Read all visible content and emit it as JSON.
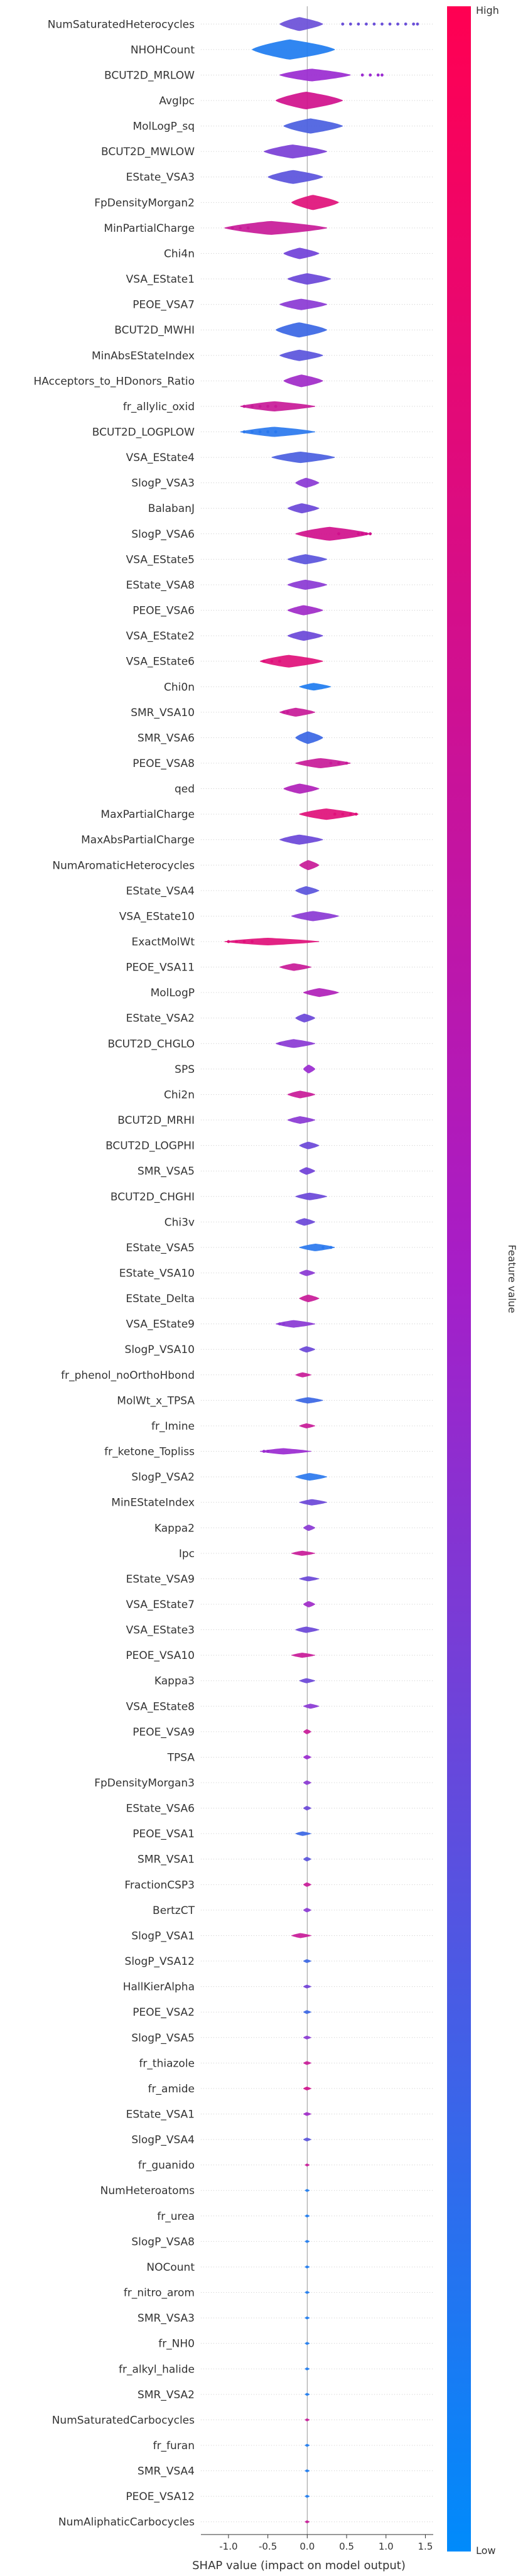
{
  "chart_data": {
    "type": "violin",
    "title": "",
    "xlabel": "SHAP value (impact on model output)",
    "ylabel": "",
    "xlim": [
      -1.35,
      1.6
    ],
    "xticks": [
      "-1.0",
      "-0.5",
      "0.0",
      "0.5",
      "1.0",
      "1.5"
    ],
    "xtick_values": [
      -1.0,
      -0.5,
      0.0,
      0.5,
      1.0,
      1.5
    ],
    "colorbar": {
      "label": "Feature value",
      "high": "High",
      "low": "Low",
      "high_color": "#ff0052",
      "low_color": "#008bfb"
    },
    "features": [
      {
        "name": "NumSaturatedHeterocycles",
        "lo": -0.35,
        "hi": 0.2,
        "w": 0.55,
        "color": "#6a4fd8",
        "outliers": [
          0.45,
          0.55,
          0.65,
          0.75,
          0.85,
          0.95,
          1.05,
          1.15,
          1.25,
          1.35,
          1.4
        ]
      },
      {
        "name": "NHOHCount",
        "lo": -0.7,
        "hi": 0.35,
        "w": 0.8,
        "color": "#1e7cf0",
        "outliers": []
      },
      {
        "name": "BCUT2D_MRLOW",
        "lo": -0.35,
        "hi": 0.55,
        "w": 0.5,
        "color": "#9a2ad0",
        "outliers": [
          0.7,
          0.8,
          0.9,
          0.95
        ]
      },
      {
        "name": "AvgIpc",
        "lo": -0.4,
        "hi": 0.45,
        "w": 0.7,
        "color": "#d0108c",
        "outliers": []
      },
      {
        "name": "MolLogP_sq",
        "lo": -0.3,
        "hi": 0.45,
        "w": 0.6,
        "color": "#4a5ee0",
        "outliers": []
      },
      {
        "name": "BCUT2D_MWLOW",
        "lo": -0.55,
        "hi": 0.25,
        "w": 0.55,
        "color": "#7a3ed6",
        "outliers": []
      },
      {
        "name": "EState_VSA3",
        "lo": -0.5,
        "hi": 0.2,
        "w": 0.55,
        "color": "#5a52dc",
        "outliers": []
      },
      {
        "name": "FpDensityMorgan2",
        "lo": -0.2,
        "hi": 0.4,
        "w": 0.6,
        "color": "#e0107a",
        "outliers": []
      },
      {
        "name": "MinPartialCharge",
        "lo": -1.05,
        "hi": 0.25,
        "w": 0.55,
        "color": "#c81a98",
        "outliers": [
          -0.95,
          -0.85,
          -0.75
        ]
      },
      {
        "name": "Chi4n",
        "lo": -0.3,
        "hi": 0.15,
        "w": 0.45,
        "color": "#7040d8",
        "outliers": []
      },
      {
        "name": "VSA_EState1",
        "lo": -0.25,
        "hi": 0.3,
        "w": 0.45,
        "color": "#6a46d8",
        "outliers": []
      },
      {
        "name": "PEOE_VSA7",
        "lo": -0.35,
        "hi": 0.25,
        "w": 0.45,
        "color": "#8a38d4",
        "outliers": []
      },
      {
        "name": "BCUT2D_MWHI",
        "lo": -0.4,
        "hi": 0.25,
        "w": 0.6,
        "color": "#3a66e4",
        "outliers": []
      },
      {
        "name": "MinAbsEStateIndex",
        "lo": -0.35,
        "hi": 0.2,
        "w": 0.45,
        "color": "#5a54dc",
        "outliers": []
      },
      {
        "name": "HAcceptors_to_HDonors_Ratio",
        "lo": -0.3,
        "hi": 0.2,
        "w": 0.5,
        "color": "#a02ac8",
        "outliers": []
      },
      {
        "name": "fr_allylic_oxid",
        "lo": -0.85,
        "hi": 0.1,
        "w": 0.4,
        "color": "#c81a98",
        "outliers": [
          -0.8,
          -0.7,
          -0.6,
          -0.5,
          -0.4
        ]
      },
      {
        "name": "BCUT2D_LOGPLOW",
        "lo": -0.85,
        "hi": 0.1,
        "w": 0.4,
        "color": "#2a78ee",
        "outliers": [
          -0.8,
          -0.7,
          -0.6,
          -0.5,
          -0.4
        ]
      },
      {
        "name": "VSA_EState4",
        "lo": -0.45,
        "hi": 0.35,
        "w": 0.45,
        "color": "#4a5ee0",
        "outliers": []
      },
      {
        "name": "SlogP_VSA3",
        "lo": -0.15,
        "hi": 0.15,
        "w": 0.4,
        "color": "#8a38d4",
        "outliers": []
      },
      {
        "name": "BalabanJ",
        "lo": -0.25,
        "hi": 0.15,
        "w": 0.4,
        "color": "#6a46d8",
        "outliers": []
      },
      {
        "name": "SlogP_VSA6",
        "lo": -0.15,
        "hi": 0.8,
        "w": 0.55,
        "color": "#d0108c",
        "outliers": [
          0.4,
          0.65,
          0.7,
          0.75,
          0.8
        ]
      },
      {
        "name": "VSA_EState5",
        "lo": -0.25,
        "hi": 0.25,
        "w": 0.4,
        "color": "#5a54dc",
        "outliers": []
      },
      {
        "name": "EState_VSA8",
        "lo": -0.25,
        "hi": 0.25,
        "w": 0.4,
        "color": "#8a38d4",
        "outliers": []
      },
      {
        "name": "PEOE_VSA6",
        "lo": -0.25,
        "hi": 0.2,
        "w": 0.4,
        "color": "#a02ac8",
        "outliers": []
      },
      {
        "name": "VSA_EState2",
        "lo": -0.25,
        "hi": 0.2,
        "w": 0.4,
        "color": "#6a46d8",
        "outliers": []
      },
      {
        "name": "VSA_EState6",
        "lo": -0.6,
        "hi": 0.2,
        "w": 0.5,
        "color": "#e0107a",
        "outliers": [
          -0.55,
          -0.45,
          -0.35
        ]
      },
      {
        "name": "Chi0n",
        "lo": -0.1,
        "hi": 0.3,
        "w": 0.3,
        "color": "#1e7cf0",
        "outliers": []
      },
      {
        "name": "SMR_VSA10",
        "lo": -0.35,
        "hi": 0.1,
        "w": 0.35,
        "color": "#c81a98",
        "outliers": [
          -0.3,
          -0.25
        ]
      },
      {
        "name": "SMR_VSA6",
        "lo": -0.15,
        "hi": 0.2,
        "w": 0.5,
        "color": "#3a66e4",
        "outliers": []
      },
      {
        "name": "PEOE_VSA8",
        "lo": -0.15,
        "hi": 0.55,
        "w": 0.4,
        "color": "#c81a98",
        "outliers": [
          0.3,
          0.4,
          0.5
        ]
      },
      {
        "name": "qed",
        "lo": -0.3,
        "hi": 0.15,
        "w": 0.4,
        "color": "#b020b8",
        "outliers": []
      },
      {
        "name": "MaxPartialCharge",
        "lo": -0.1,
        "hi": 0.65,
        "w": 0.45,
        "color": "#e0107a",
        "outliers": [
          0.35,
          0.45,
          0.55,
          0.62
        ]
      },
      {
        "name": "MaxAbsPartialCharge",
        "lo": -0.35,
        "hi": 0.2,
        "w": 0.4,
        "color": "#6a46d8",
        "outliers": []
      },
      {
        "name": "NumAromaticHeterocycles",
        "lo": -0.1,
        "hi": 0.15,
        "w": 0.4,
        "color": "#c81a98",
        "outliers": []
      },
      {
        "name": "EState_VSA4",
        "lo": -0.15,
        "hi": 0.15,
        "w": 0.35,
        "color": "#5a54dc",
        "outliers": []
      },
      {
        "name": "VSA_EState10",
        "lo": -0.2,
        "hi": 0.4,
        "w": 0.4,
        "color": "#8a38d4",
        "outliers": []
      },
      {
        "name": "ExactMolWt",
        "lo": -1.05,
        "hi": 0.15,
        "w": 0.3,
        "color": "#e0107a",
        "outliers": [
          -1.0,
          -0.9,
          -0.8,
          -0.7
        ]
      },
      {
        "name": "PEOE_VSA11",
        "lo": -0.35,
        "hi": 0.05,
        "w": 0.3,
        "color": "#c81a98",
        "outliers": []
      },
      {
        "name": "MolLogP",
        "lo": -0.05,
        "hi": 0.4,
        "w": 0.35,
        "color": "#b020b8",
        "outliers": []
      },
      {
        "name": "EState_VSA2",
        "lo": -0.15,
        "hi": 0.1,
        "w": 0.35,
        "color": "#6a46d8",
        "outliers": []
      },
      {
        "name": "BCUT2D_CHGLO",
        "lo": -0.4,
        "hi": 0.1,
        "w": 0.35,
        "color": "#8a38d4",
        "outliers": [
          -0.35
        ]
      },
      {
        "name": "SPS",
        "lo": -0.05,
        "hi": 0.1,
        "w": 0.35,
        "color": "#9a2ad0",
        "outliers": []
      },
      {
        "name": "Chi2n",
        "lo": -0.25,
        "hi": 0.1,
        "w": 0.3,
        "color": "#c81a98",
        "outliers": []
      },
      {
        "name": "BCUT2D_MRHI",
        "lo": -0.25,
        "hi": 0.1,
        "w": 0.3,
        "color": "#8a38d4",
        "outliers": []
      },
      {
        "name": "BCUT2D_LOGPHI",
        "lo": -0.1,
        "hi": 0.15,
        "w": 0.3,
        "color": "#6a46d8",
        "outliers": []
      },
      {
        "name": "SMR_VSA5",
        "lo": -0.1,
        "hi": 0.1,
        "w": 0.3,
        "color": "#7040d8",
        "outliers": []
      },
      {
        "name": "BCUT2D_CHGHI",
        "lo": -0.15,
        "hi": 0.25,
        "w": 0.3,
        "color": "#6a46d8",
        "outliers": []
      },
      {
        "name": "Chi3v",
        "lo": -0.15,
        "hi": 0.1,
        "w": 0.3,
        "color": "#6a46d8",
        "outliers": []
      },
      {
        "name": "EState_VSA5",
        "lo": -0.1,
        "hi": 0.35,
        "w": 0.3,
        "color": "#2a78ee",
        "outliers": [
          0.2,
          0.3
        ]
      },
      {
        "name": "EState_VSA10",
        "lo": -0.1,
        "hi": 0.1,
        "w": 0.25,
        "color": "#8a38d4",
        "outliers": []
      },
      {
        "name": "EState_Delta",
        "lo": -0.1,
        "hi": 0.15,
        "w": 0.3,
        "color": "#c81a98",
        "outliers": []
      },
      {
        "name": "VSA_EState9",
        "lo": -0.4,
        "hi": 0.1,
        "w": 0.3,
        "color": "#8a38d4",
        "outliers": [
          -0.35,
          -0.3
        ]
      },
      {
        "name": "SlogP_VSA10",
        "lo": -0.1,
        "hi": 0.1,
        "w": 0.25,
        "color": "#6a46d8",
        "outliers": []
      },
      {
        "name": "fr_phenol_noOrthoHbond",
        "lo": -0.15,
        "hi": 0.05,
        "w": 0.2,
        "color": "#c81a98",
        "outliers": []
      },
      {
        "name": "MolWt_x_TPSA",
        "lo": -0.15,
        "hi": 0.2,
        "w": 0.25,
        "color": "#3a66e4",
        "outliers": []
      },
      {
        "name": "fr_Imine",
        "lo": -0.1,
        "hi": 0.1,
        "w": 0.2,
        "color": "#c81a98",
        "outliers": []
      },
      {
        "name": "fr_ketone_Topliss",
        "lo": -0.6,
        "hi": 0.05,
        "w": 0.25,
        "color": "#9a2ad0",
        "outliers": [
          -0.55,
          -0.5
        ]
      },
      {
        "name": "SlogP_VSA2",
        "lo": -0.15,
        "hi": 0.25,
        "w": 0.3,
        "color": "#2a78ee",
        "outliers": []
      },
      {
        "name": "MinEStateIndex",
        "lo": -0.1,
        "hi": 0.25,
        "w": 0.25,
        "color": "#6a46d8",
        "outliers": []
      },
      {
        "name": "Kappa2",
        "lo": -0.05,
        "hi": 0.1,
        "w": 0.25,
        "color": "#8a38d4",
        "outliers": []
      },
      {
        "name": "Ipc",
        "lo": -0.2,
        "hi": 0.1,
        "w": 0.2,
        "color": "#c81a98",
        "outliers": []
      },
      {
        "name": "EState_VSA9",
        "lo": -0.1,
        "hi": 0.15,
        "w": 0.2,
        "color": "#6a46d8",
        "outliers": []
      },
      {
        "name": "VSA_EState7",
        "lo": -0.05,
        "hi": 0.1,
        "w": 0.25,
        "color": "#a02ac8",
        "outliers": []
      },
      {
        "name": "VSA_EState3",
        "lo": -0.15,
        "hi": 0.15,
        "w": 0.25,
        "color": "#6a46d8",
        "outliers": []
      },
      {
        "name": "PEOE_VSA10",
        "lo": -0.2,
        "hi": 0.1,
        "w": 0.2,
        "color": "#c81a98",
        "outliers": []
      },
      {
        "name": "Kappa3",
        "lo": -0.1,
        "hi": 0.1,
        "w": 0.2,
        "color": "#6a46d8",
        "outliers": []
      },
      {
        "name": "VSA_EState8",
        "lo": -0.05,
        "hi": 0.15,
        "w": 0.2,
        "color": "#8a38d4",
        "outliers": []
      },
      {
        "name": "PEOE_VSA9",
        "lo": -0.05,
        "hi": 0.05,
        "w": 0.2,
        "color": "#c81a98",
        "outliers": []
      },
      {
        "name": "TPSA",
        "lo": -0.05,
        "hi": 0.05,
        "w": 0.18,
        "color": "#9a2ad0",
        "outliers": []
      },
      {
        "name": "FpDensityMorgan3",
        "lo": -0.05,
        "hi": 0.05,
        "w": 0.18,
        "color": "#8a38d4",
        "outliers": []
      },
      {
        "name": "EState_VSA6",
        "lo": -0.05,
        "hi": 0.05,
        "w": 0.18,
        "color": "#6a46d8",
        "outliers": []
      },
      {
        "name": "PEOE_VSA1",
        "lo": -0.15,
        "hi": 0.05,
        "w": 0.18,
        "color": "#3a66e4",
        "outliers": []
      },
      {
        "name": "SMR_VSA1",
        "lo": -0.05,
        "hi": 0.05,
        "w": 0.18,
        "color": "#5a54dc",
        "outliers": []
      },
      {
        "name": "FractionCSP3",
        "lo": -0.05,
        "hi": 0.05,
        "w": 0.18,
        "color": "#c81a98",
        "outliers": []
      },
      {
        "name": "BertzCT",
        "lo": -0.05,
        "hi": 0.05,
        "w": 0.18,
        "color": "#8a38d4",
        "outliers": []
      },
      {
        "name": "SlogP_VSA1",
        "lo": -0.2,
        "hi": 0.05,
        "w": 0.2,
        "color": "#c81a98",
        "outliers": []
      },
      {
        "name": "SlogP_VSA12",
        "lo": -0.05,
        "hi": 0.05,
        "w": 0.15,
        "color": "#3a66e4",
        "outliers": []
      },
      {
        "name": "HallKierAlpha",
        "lo": -0.05,
        "hi": 0.05,
        "w": 0.15,
        "color": "#7040d8",
        "outliers": []
      },
      {
        "name": "PEOE_VSA2",
        "lo": -0.05,
        "hi": 0.05,
        "w": 0.15,
        "color": "#3a66e4",
        "outliers": []
      },
      {
        "name": "SlogP_VSA5",
        "lo": -0.05,
        "hi": 0.05,
        "w": 0.15,
        "color": "#8a38d4",
        "outliers": []
      },
      {
        "name": "fr_thiazole",
        "lo": -0.05,
        "hi": 0.05,
        "w": 0.15,
        "color": "#c81a98",
        "outliers": []
      },
      {
        "name": "fr_amide",
        "lo": -0.05,
        "hi": 0.05,
        "w": 0.15,
        "color": "#d0108c",
        "outliers": []
      },
      {
        "name": "EState_VSA1",
        "lo": -0.05,
        "hi": 0.05,
        "w": 0.15,
        "color": "#a02ac8",
        "outliers": []
      },
      {
        "name": "SlogP_VSA4",
        "lo": -0.05,
        "hi": 0.05,
        "w": 0.15,
        "color": "#5a54dc",
        "outliers": []
      },
      {
        "name": "fr_guanido",
        "lo": -0.03,
        "hi": 0.03,
        "w": 0.12,
        "color": "#c81a98",
        "outliers": []
      },
      {
        "name": "NumHeteroatoms",
        "lo": -0.03,
        "hi": 0.03,
        "w": 0.12,
        "color": "#1e7cf0",
        "outliers": []
      },
      {
        "name": "fr_urea",
        "lo": -0.03,
        "hi": 0.03,
        "w": 0.12,
        "color": "#1e7cf0",
        "outliers": []
      },
      {
        "name": "SlogP_VSA8",
        "lo": -0.03,
        "hi": 0.03,
        "w": 0.12,
        "color": "#1e7cf0",
        "outliers": []
      },
      {
        "name": "NOCount",
        "lo": -0.03,
        "hi": 0.03,
        "w": 0.12,
        "color": "#1e7cf0",
        "outliers": []
      },
      {
        "name": "fr_nitro_arom",
        "lo": -0.03,
        "hi": 0.03,
        "w": 0.12,
        "color": "#1e7cf0",
        "outliers": []
      },
      {
        "name": "SMR_VSA3",
        "lo": -0.03,
        "hi": 0.03,
        "w": 0.12,
        "color": "#1e7cf0",
        "outliers": []
      },
      {
        "name": "fr_NH0",
        "lo": -0.03,
        "hi": 0.03,
        "w": 0.12,
        "color": "#1e7cf0",
        "outliers": []
      },
      {
        "name": "fr_alkyl_halide",
        "lo": -0.03,
        "hi": 0.03,
        "w": 0.12,
        "color": "#1e7cf0",
        "outliers": []
      },
      {
        "name": "SMR_VSA2",
        "lo": -0.03,
        "hi": 0.03,
        "w": 0.12,
        "color": "#1e7cf0",
        "outliers": []
      },
      {
        "name": "NumSaturatedCarbocycles",
        "lo": -0.03,
        "hi": 0.03,
        "w": 0.12,
        "color": "#c81a98",
        "outliers": []
      },
      {
        "name": "fr_furan",
        "lo": -0.03,
        "hi": 0.03,
        "w": 0.12,
        "color": "#1e7cf0",
        "outliers": []
      },
      {
        "name": "SMR_VSA4",
        "lo": -0.03,
        "hi": 0.03,
        "w": 0.12,
        "color": "#1e7cf0",
        "outliers": []
      },
      {
        "name": "PEOE_VSA12",
        "lo": -0.03,
        "hi": 0.03,
        "w": 0.12,
        "color": "#1e7cf0",
        "outliers": []
      },
      {
        "name": "NumAliphaticCarbocycles",
        "lo": -0.03,
        "hi": 0.03,
        "w": 0.12,
        "color": "#c81a98",
        "outliers": []
      }
    ]
  }
}
